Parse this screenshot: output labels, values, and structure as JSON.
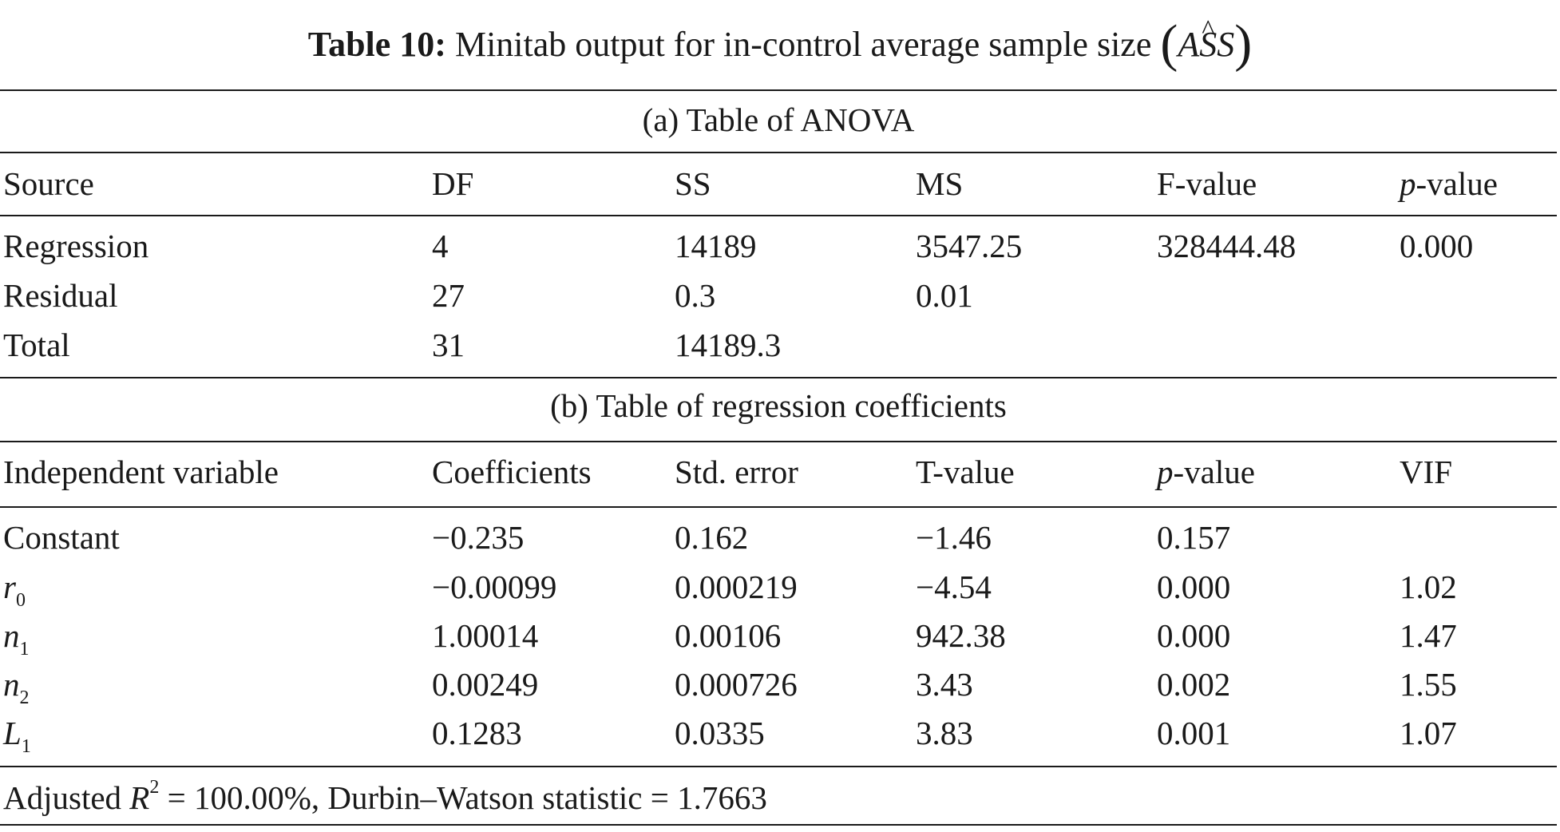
{
  "caption": {
    "label": "Table 10:",
    "text": "Minitab output for in-control average sample size",
    "open_paren": "(",
    "symbol_a": "A",
    "symbol_s_hat": "S",
    "symbol_s": "S",
    "close_paren": ")"
  },
  "anova": {
    "title": "(a) Table of ANOVA",
    "headers": [
      "Source",
      "DF",
      "SS",
      "MS",
      "F-value",
      "p",
      "-value"
    ],
    "rows": [
      [
        "Regression",
        "4",
        "14189",
        "3547.25",
        "328444.48",
        "0.000"
      ],
      [
        "Residual",
        "27",
        "0.3",
        "0.01",
        "",
        ""
      ],
      [
        "Total",
        "31",
        "14189.3",
        "",
        "",
        ""
      ]
    ]
  },
  "coefficients": {
    "title": "(b) Table of regression coefficients",
    "headers": [
      "Independent variable",
      "Coefficients",
      "Std. error",
      "T-value",
      "p",
      "-value",
      "VIF"
    ],
    "rows": [
      {
        "var": "Constant",
        "sub": "",
        "coef": "−0.235",
        "se": "0.162",
        "t": "−1.46",
        "p": "0.157",
        "vif": ""
      },
      {
        "var": "r",
        "sub": "0",
        "coef": "−0.00099",
        "se": "0.000219",
        "t": "−4.54",
        "p": "0.000",
        "vif": "1.02"
      },
      {
        "var": "n",
        "sub": "1",
        "coef": "1.00014",
        "se": "0.00106",
        "t": "942.38",
        "p": "0.000",
        "vif": "1.47"
      },
      {
        "var": "n",
        "sub": "2",
        "coef": "0.00249",
        "se": "0.000726",
        "t": "3.43",
        "p": "0.002",
        "vif": "1.55"
      },
      {
        "var": "L",
        "sub": "1",
        "coef": "0.1283",
        "se": "0.0335",
        "t": "3.83",
        "p": "0.001",
        "vif": "1.07"
      }
    ]
  },
  "footer": {
    "prefix": "Adjusted ",
    "r": "R",
    "sup": "2",
    "rest": " = 100.00%, Durbin–Watson statistic = 1.7663"
  }
}
